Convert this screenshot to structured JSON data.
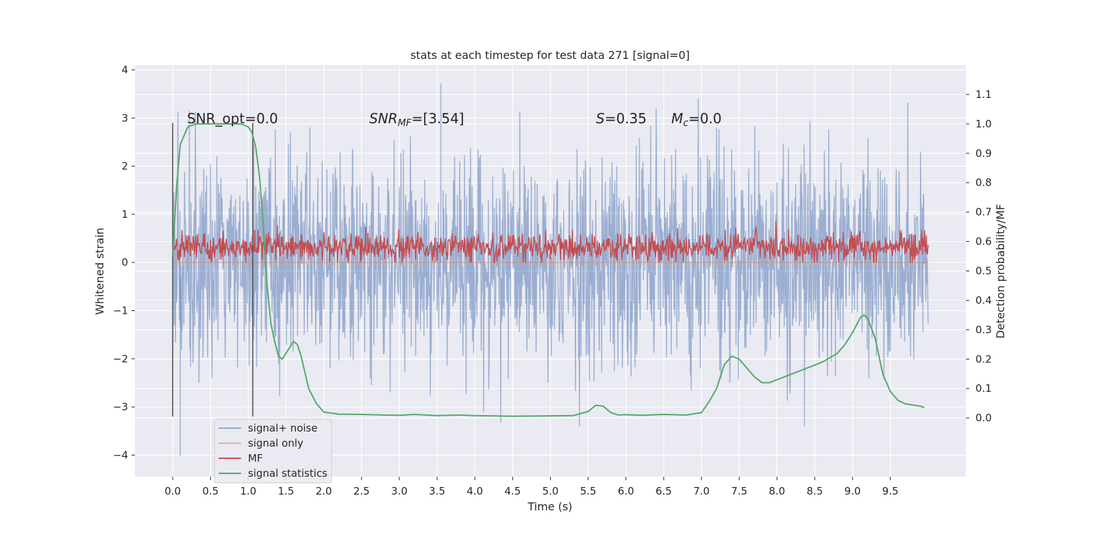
{
  "chart_data": {
    "type": "line",
    "title": "stats at each timestep for test data 271 [signal=0]",
    "xlabel": "Time (s)",
    "ylabel": "Whitened strain",
    "y2label": "Detection probability/MF",
    "xlim": [
      -0.5,
      10.5
    ],
    "ylim": [
      -4.45,
      4.1
    ],
    "y2lim": [
      -0.2,
      1.2
    ],
    "xticks": [
      "0.0",
      "0.5",
      "1.0",
      "1.5",
      "2.0",
      "2.5",
      "3.0",
      "3.5",
      "4.0",
      "4.5",
      "5.0",
      "5.5",
      "6.0",
      "6.5",
      "7.0",
      "7.5",
      "8.0",
      "8.5",
      "9.0",
      "9.5"
    ],
    "yticks": [
      "4",
      "3",
      "2",
      "1",
      "0",
      "−1",
      "−2",
      "−3",
      "−4"
    ],
    "y2ticks": [
      "1.1",
      "1.0",
      "0.9",
      "0.8",
      "0.7",
      "0.6",
      "0.5",
      "0.4",
      "0.3",
      "0.2",
      "0.1",
      "0.0"
    ],
    "grid": true,
    "legend": {
      "placement": "lower-left",
      "entries": [
        "signal+ noise",
        "signal only",
        "MF",
        "signal statistics"
      ]
    },
    "annotations": {
      "snr_opt": "SNR_opt=0.0",
      "snr_mf": "=[3.54]",
      "s": "=0.35",
      "mc": "=0.0"
    },
    "vertical_markers_x": [
      0.0,
      1.06
    ],
    "series": [
      {
        "name": "signal+ noise",
        "color": "#4c72b0",
        "x_range": [
          0.0,
          10.0
        ],
        "description_envelope": [
          -2.5,
          2.5
        ],
        "peak_max": 3.72,
        "peak_min": -4.02
      },
      {
        "name": "signal only",
        "color": "#dd8452",
        "x": [
          0.0,
          10.0
        ],
        "y": [
          0.0,
          0.0
        ]
      },
      {
        "name": "MF",
        "color": "#c44e52",
        "x_range": [
          0.0,
          10.0
        ],
        "band": [
          0.0,
          0.7
        ]
      },
      {
        "name": "signal statistics",
        "color": "#55a868",
        "x": [
          0.0,
          0.05,
          0.1,
          0.2,
          0.3,
          0.4,
          0.5,
          0.6,
          0.7,
          0.8,
          0.9,
          1.0,
          1.05,
          1.1,
          1.15,
          1.2,
          1.25,
          1.3,
          1.35,
          1.4,
          1.45,
          1.5,
          1.55,
          1.6,
          1.65,
          1.7,
          1.8,
          1.9,
          2.0,
          2.2,
          2.5,
          2.8,
          3.0,
          3.2,
          3.5,
          3.8,
          4.0,
          4.5,
          5.0,
          5.3,
          5.5,
          5.6,
          5.7,
          5.8,
          5.9,
          6.0,
          6.2,
          6.5,
          6.8,
          7.0,
          7.1,
          7.2,
          7.3,
          7.4,
          7.5,
          7.6,
          7.7,
          7.8,
          7.9,
          8.0,
          8.2,
          8.4,
          8.6,
          8.8,
          8.9,
          9.0,
          9.1,
          9.15,
          9.2,
          9.3,
          9.4,
          9.5,
          9.6,
          9.7,
          9.8,
          9.9,
          9.95
        ],
        "y": [
          0.55,
          0.78,
          0.93,
          0.99,
          1.0,
          1.0,
          1.0,
          1.0,
          1.0,
          1.0,
          1.0,
          0.99,
          0.97,
          0.92,
          0.82,
          0.65,
          0.45,
          0.32,
          0.26,
          0.21,
          0.2,
          0.22,
          0.24,
          0.26,
          0.25,
          0.21,
          0.1,
          0.05,
          0.02,
          0.013,
          0.012,
          0.01,
          0.009,
          0.012,
          0.008,
          0.01,
          0.008,
          0.006,
          0.007,
          0.008,
          0.022,
          0.043,
          0.04,
          0.018,
          0.01,
          0.011,
          0.009,
          0.012,
          0.01,
          0.018,
          0.055,
          0.1,
          0.18,
          0.21,
          0.2,
          0.17,
          0.14,
          0.12,
          0.12,
          0.13,
          0.15,
          0.17,
          0.19,
          0.22,
          0.25,
          0.29,
          0.34,
          0.35,
          0.34,
          0.27,
          0.15,
          0.09,
          0.06,
          0.048,
          0.044,
          0.04,
          0.035
        ]
      }
    ]
  }
}
